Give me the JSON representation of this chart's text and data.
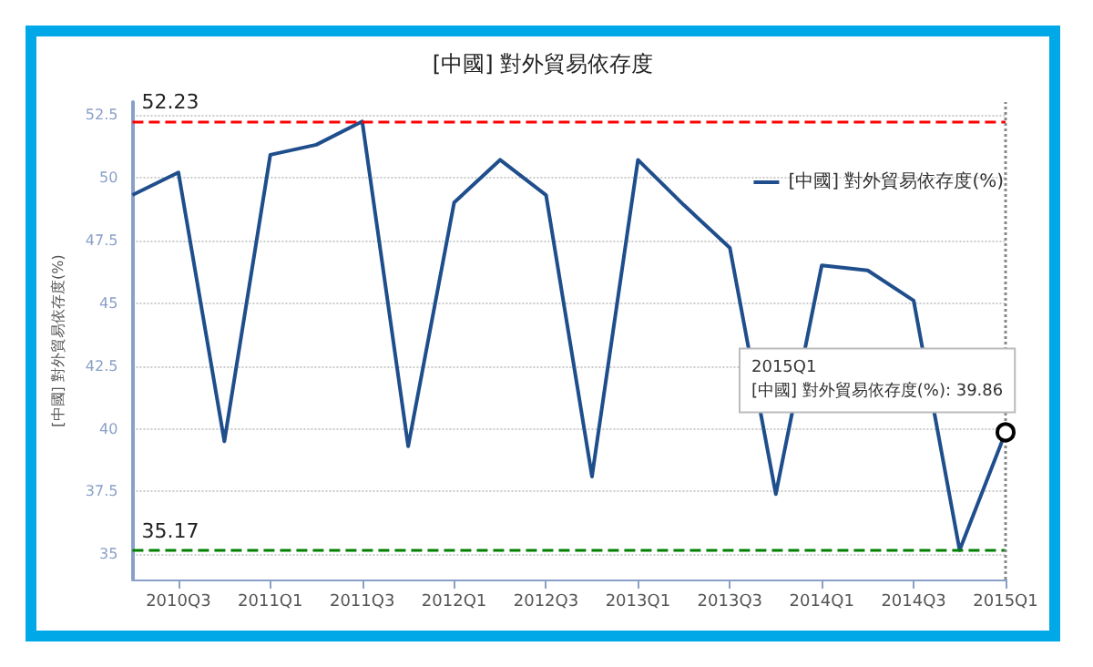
{
  "chart_data": {
    "type": "line",
    "title": "[中國] 對外貿易依存度",
    "ylabel": "[中國] 對外貿易依存度(%)",
    "categories": [
      null,
      "2010Q3",
      null,
      "2011Q1",
      null,
      "2011Q3",
      null,
      "2012Q1",
      null,
      "2012Q3",
      null,
      "2013Q1",
      null,
      "2013Q3",
      null,
      "2014Q1",
      null,
      "2014Q3",
      null,
      "2015Q1"
    ],
    "series": [
      {
        "name": "[中國] 對外貿易依存度(%)",
        "color": "#1f4e8c",
        "values": [
          49.3,
          50.2,
          39.5,
          50.9,
          51.3,
          52.23,
          39.3,
          49.0,
          50.7,
          49.3,
          38.1,
          50.7,
          48.9,
          47.2,
          37.4,
          46.5,
          46.3,
          45.1,
          35.17,
          39.86
        ]
      }
    ],
    "ylim": [
      34,
      53
    ],
    "yticks": [
      35,
      37.5,
      40,
      42.5,
      45,
      47.5,
      50,
      52.5
    ],
    "ref_lines": [
      {
        "axis": "y",
        "value": 52.23,
        "label": "52.23",
        "color": "#ff0000",
        "line_style": "dashed"
      },
      {
        "axis": "y",
        "value": 35.17,
        "label": "35.17",
        "color": "#008000",
        "line_style": "dashed"
      },
      {
        "axis": "x",
        "value": "2015Q1",
        "color": "#888888",
        "line_style": "dotted"
      }
    ],
    "annotations": [
      {
        "text": "2015Q1\n[中國] 對外貿易依存度(%): 39.86",
        "x": "2015Q1",
        "y": 39.86
      }
    ],
    "grid": "y",
    "legend": "top right",
    "marker": "none",
    "line_style": "solid"
  }
}
